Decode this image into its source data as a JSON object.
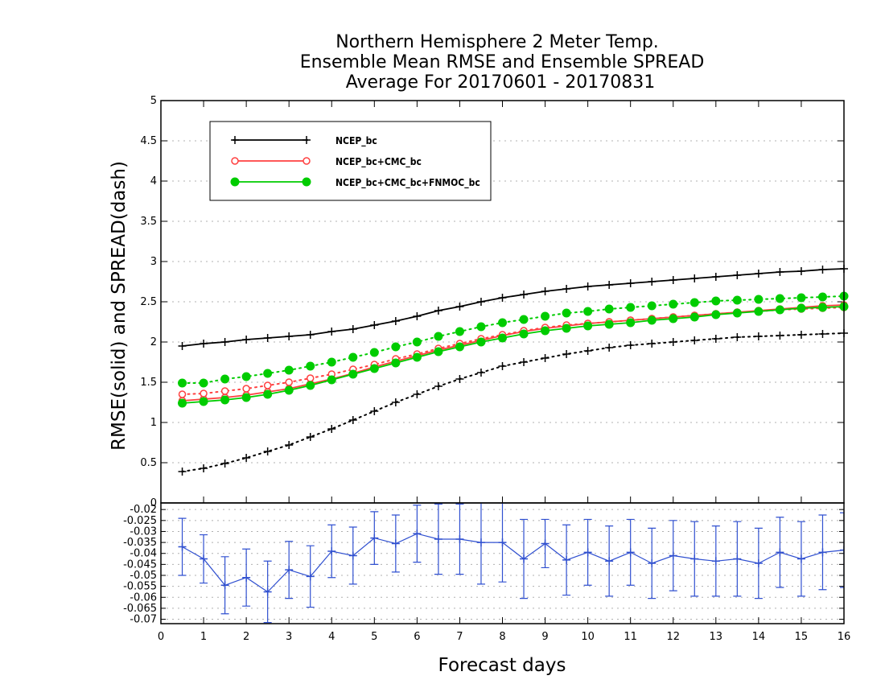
{
  "chart_data": {
    "type": "line",
    "title": [
      "Northern Hemisphere 2 Meter Temp.",
      "Ensemble Mean RMSE and Ensemble SPREAD",
      "Average For 20170601 - 20170831"
    ],
    "xlabel": "Forecast days",
    "ylabel": "RMSE(solid) and SPREAD(dash)",
    "xlim": [
      0,
      16
    ],
    "xticks": [
      "0",
      "1",
      "2",
      "3",
      "4",
      "5",
      "6",
      "7",
      "8",
      "9",
      "10",
      "11",
      "12",
      "13",
      "14",
      "15",
      "16"
    ],
    "grid": true,
    "top_panel": {
      "ylim": [
        0,
        5
      ],
      "yticks": [
        "0",
        "0.5",
        "1",
        "1.5",
        "2",
        "2.5",
        "3",
        "3.5",
        "4",
        "4.5",
        "5"
      ],
      "x": [
        0.5,
        1,
        1.5,
        2,
        2.5,
        3,
        3.5,
        4,
        4.5,
        5,
        5.5,
        6,
        6.5,
        7,
        7.5,
        8,
        8.5,
        9,
        9.5,
        10,
        10.5,
        11,
        11.5,
        12,
        12.5,
        13,
        13.5,
        14,
        14.5,
        15,
        15.5,
        16
      ],
      "series": [
        {
          "name": "NCEP_bc",
          "color": "#000000",
          "marker": "plus",
          "style": "solid",
          "values": [
            1.95,
            1.98,
            2.0,
            2.03,
            2.05,
            2.07,
            2.09,
            2.13,
            2.16,
            2.21,
            2.26,
            2.32,
            2.39,
            2.44,
            2.5,
            2.55,
            2.59,
            2.63,
            2.66,
            2.69,
            2.71,
            2.73,
            2.75,
            2.77,
            2.79,
            2.81,
            2.83,
            2.85,
            2.87,
            2.88,
            2.9,
            2.91
          ]
        },
        {
          "name": "NCEP_bc",
          "color": "#000000",
          "marker": "plus",
          "style": "dotted",
          "values": [
            0.39,
            0.43,
            0.49,
            0.56,
            0.64,
            0.72,
            0.82,
            0.92,
            1.03,
            1.14,
            1.25,
            1.35,
            1.45,
            1.54,
            1.62,
            1.7,
            1.75,
            1.8,
            1.85,
            1.89,
            1.93,
            1.96,
            1.98,
            2.0,
            2.02,
            2.04,
            2.06,
            2.07,
            2.08,
            2.09,
            2.1,
            2.11
          ]
        },
        {
          "name": "NCEP_bc+CMC_bc",
          "color": "#ff4040",
          "marker": "open-circle",
          "style": "solid",
          "values": [
            1.27,
            1.29,
            1.31,
            1.34,
            1.38,
            1.42,
            1.48,
            1.54,
            1.61,
            1.69,
            1.76,
            1.83,
            1.9,
            1.96,
            2.02,
            2.08,
            2.13,
            2.17,
            2.2,
            2.23,
            2.25,
            2.27,
            2.29,
            2.31,
            2.33,
            2.35,
            2.37,
            2.39,
            2.41,
            2.43,
            2.45,
            2.46
          ]
        },
        {
          "name": "NCEP_bc+CMC_bc",
          "color": "#ff4040",
          "marker": "open-circle",
          "style": "dotted",
          "values": [
            1.35,
            1.36,
            1.39,
            1.42,
            1.46,
            1.5,
            1.55,
            1.6,
            1.66,
            1.72,
            1.79,
            1.85,
            1.92,
            1.98,
            2.04,
            2.09,
            2.14,
            2.18,
            2.21,
            2.23,
            2.25,
            2.27,
            2.29,
            2.31,
            2.33,
            2.35,
            2.37,
            2.38,
            2.4,
            2.41,
            2.42,
            2.43
          ]
        },
        {
          "name": "NCEP_bc+CMC_bc+FNMOC_bc",
          "color": "#00cc00",
          "marker": "filled-circle",
          "style": "solid",
          "values": [
            1.24,
            1.26,
            1.28,
            1.31,
            1.35,
            1.4,
            1.46,
            1.53,
            1.6,
            1.67,
            1.74,
            1.81,
            1.88,
            1.94,
            2.0,
            2.05,
            2.1,
            2.14,
            2.17,
            2.2,
            2.22,
            2.24,
            2.27,
            2.29,
            2.31,
            2.34,
            2.36,
            2.38,
            2.4,
            2.42,
            2.43,
            2.44
          ]
        },
        {
          "name": "NCEP_bc+CMC_bc+FNMOC_bc",
          "color": "#00cc00",
          "marker": "filled-circle",
          "style": "dotted",
          "values": [
            1.49,
            1.49,
            1.54,
            1.57,
            1.61,
            1.65,
            1.7,
            1.75,
            1.81,
            1.87,
            1.94,
            2.0,
            2.07,
            2.13,
            2.19,
            2.24,
            2.28,
            2.32,
            2.36,
            2.38,
            2.41,
            2.43,
            2.45,
            2.47,
            2.49,
            2.51,
            2.52,
            2.53,
            2.54,
            2.55,
            2.56,
            2.57
          ]
        }
      ],
      "legend": {
        "placement": "top-left",
        "entries": [
          {
            "label": "NCEP_bc",
            "color": "#000000",
            "marker": "plus"
          },
          {
            "label": "NCEP_bc+CMC_bc",
            "color": "#ff4040",
            "marker": "open-circle"
          },
          {
            "label": "NCEP_bc+CMC_bc+FNMOC_bc",
            "color": "#00cc00",
            "marker": "filled-circle"
          }
        ]
      }
    },
    "bottom_panel": {
      "ylim": [
        -0.072,
        -0.017
      ],
      "yticks": [
        "-0.02",
        "-0.025",
        "-0.03",
        "-0.035",
        "-0.04",
        "-0.045",
        "-0.05",
        "-0.055",
        "-0.06",
        "-0.065",
        "-0.07"
      ],
      "x": [
        0.5,
        1,
        1.5,
        2,
        2.5,
        3,
        3.5,
        4,
        4.5,
        5,
        5.5,
        6,
        6.5,
        7,
        7.5,
        8,
        8.5,
        9,
        9.5,
        10,
        10.5,
        11,
        11.5,
        12,
        12.5,
        13,
        13.5,
        14,
        14.5,
        15,
        15.5,
        16
      ],
      "series": [
        {
          "name": "",
          "color": "#3050d0",
          "marker": "plus",
          "style": "solid",
          "values": [
            -0.037,
            -0.0425,
            -0.0545,
            -0.051,
            -0.0575,
            -0.0475,
            -0.0505,
            -0.039,
            -0.041,
            -0.033,
            -0.0355,
            -0.031,
            -0.0335,
            -0.0335,
            -0.035,
            -0.035,
            -0.0425,
            -0.0355,
            -0.043,
            -0.0395,
            -0.0435,
            -0.0395,
            -0.0445,
            -0.041,
            -0.0425,
            -0.0435,
            -0.0425,
            -0.0445,
            -0.0395,
            -0.0425,
            -0.0395,
            -0.0385
          ],
          "errors": [
            0.013,
            0.011,
            0.013,
            0.013,
            0.014,
            0.013,
            0.014,
            0.012,
            0.013,
            0.012,
            0.013,
            0.013,
            0.016,
            0.016,
            0.019,
            0.018,
            0.018,
            0.011,
            0.016,
            0.015,
            0.016,
            0.015,
            0.016,
            0.016,
            0.017,
            0.016,
            0.017,
            0.016,
            0.016,
            0.017,
            0.017,
            0.017
          ]
        }
      ]
    }
  }
}
